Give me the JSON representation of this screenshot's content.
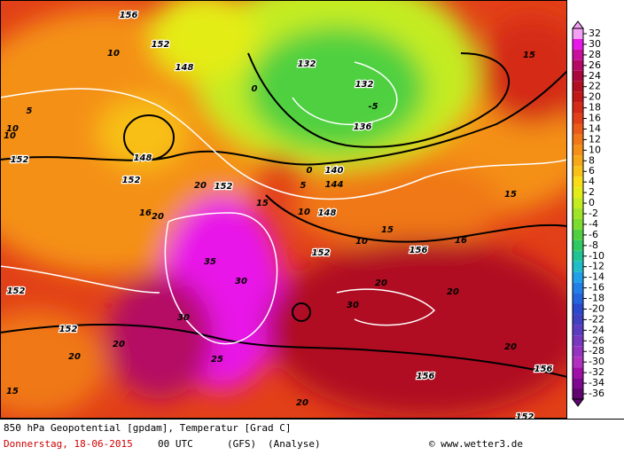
{
  "map": {
    "labels": [
      "156",
      "152",
      "148",
      "132",
      "132",
      "136",
      "140",
      "144",
      "148",
      "152",
      "152",
      "148",
      "152",
      "152",
      "156",
      "152",
      "152",
      "156",
      "156",
      "152",
      "10",
      "10",
      "5",
      "0",
      "0",
      "-5",
      "5",
      "10",
      "15",
      "15",
      "20",
      "20",
      "25",
      "30",
      "35",
      "30",
      "20",
      "20",
      "30",
      "20",
      "20",
      "20",
      "20",
      "15",
      "16",
      "15",
      "10",
      "10",
      "16",
      "15"
    ],
    "colorbar": {
      "ticks": [
        32,
        30,
        28,
        26,
        24,
        22,
        20,
        18,
        16,
        14,
        12,
        10,
        8,
        6,
        4,
        2,
        0,
        -2,
        -4,
        -6,
        -8,
        -10,
        -12,
        -14,
        -16,
        -18,
        -20,
        -22,
        -24,
        -26,
        -28,
        -30,
        -32,
        -34,
        -36
      ],
      "colors": [
        "#f4a0f4",
        "#e818e8",
        "#c8109c",
        "#b40a64",
        "#a8083c",
        "#b01020",
        "#c41818",
        "#d42a18",
        "#e24018",
        "#ea5c18",
        "#f07818",
        "#f49018",
        "#f6a818",
        "#f8c018",
        "#f8dc18",
        "#e4ec18",
        "#c4ec20",
        "#a0e428",
        "#7cdc30",
        "#50d040",
        "#30c860",
        "#20c494",
        "#20bcc8",
        "#20a0e8",
        "#2080e8",
        "#2464dc",
        "#2c48cc",
        "#4040c0",
        "#5c3cc0",
        "#7838c0",
        "#9434c0",
        "#b030c0",
        "#a010a8",
        "#800890",
        "#600470"
      ]
    },
    "footer": {
      "title": "850 hPa Geopotential [gpdam], Temperatur [Grad C]",
      "date": "Donnerstag, 18-06-2015",
      "time": "00 UTC",
      "model": "(GFS)",
      "run": "(Analyse)",
      "source": "© www.wetter3.de"
    }
  }
}
